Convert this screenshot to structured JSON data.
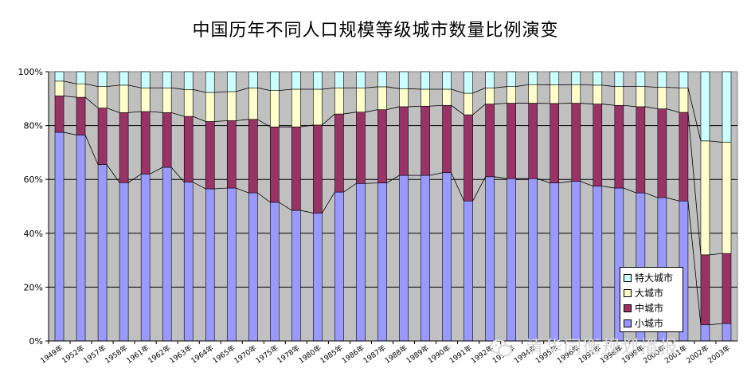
{
  "chart_data": {
    "type": "bar",
    "stacked": true,
    "percent": true,
    "title": "中国历年不同人口规模等级城市数量比例演变",
    "categories": [
      "1949年",
      "1952年",
      "1957年",
      "1958年",
      "1961年",
      "1962年",
      "1963年",
      "1964年",
      "1965年",
      "1970年",
      "1975年",
      "1978年",
      "1980年",
      "1985年",
      "1986年",
      "1987年",
      "1988年",
      "1989年",
      "1990年",
      "1991年",
      "1992年",
      "1993年",
      "1994年",
      "1995年",
      "1996年",
      "1997年",
      "1998年",
      "1999年",
      "2000年",
      "2001年",
      "2002年",
      "2003年"
    ],
    "ylim": [
      0,
      100
    ],
    "yticks": [
      "0%",
      "20%",
      "40%",
      "60%",
      "80%",
      "100%"
    ],
    "grid": true,
    "legend_position": "bottom-right",
    "series": [
      {
        "name": "小城市",
        "color": "#9999ff",
        "values": [
          77.5,
          76.5,
          65.5,
          58.8,
          62.0,
          64.5,
          59.0,
          56.5,
          56.8,
          55.0,
          51.5,
          48.5,
          47.5,
          55.3,
          58.5,
          58.7,
          61.5,
          61.5,
          62.5,
          52.0,
          61.0,
          60.3,
          60.3,
          58.7,
          59.3,
          57.5,
          56.8,
          55.0,
          53.2,
          52.0,
          6.0,
          6.5
        ]
      },
      {
        "name": "中城市",
        "color": "#993366",
        "values": [
          13.5,
          14.0,
          21.0,
          26.0,
          23.2,
          20.3,
          24.4,
          25.0,
          25.0,
          27.3,
          28.0,
          31.0,
          32.7,
          29.0,
          26.5,
          27.2,
          25.5,
          25.7,
          25.0,
          32.0,
          27.0,
          28.0,
          28.0,
          29.5,
          29.0,
          30.5,
          30.7,
          32.0,
          33.0,
          32.9,
          26.0,
          26.0
        ]
      },
      {
        "name": "大城市",
        "color": "#ffffcc",
        "values": [
          5.5,
          5.0,
          8.0,
          10.2,
          8.8,
          9.2,
          10.0,
          10.8,
          10.8,
          11.7,
          13.5,
          14.0,
          13.3,
          9.7,
          9.0,
          8.5,
          6.7,
          6.3,
          6.0,
          8.0,
          6.0,
          6.2,
          6.9,
          6.9,
          6.9,
          7.0,
          7.0,
          7.5,
          8.0,
          9.1,
          42.3,
          41.3
        ]
      },
      {
        "name": "特大城市",
        "color": "#ccffff",
        "values": [
          3.5,
          4.5,
          5.5,
          5.0,
          6.0,
          6.0,
          6.6,
          7.7,
          7.4,
          6.0,
          7.0,
          6.5,
          6.5,
          6.0,
          6.0,
          5.6,
          6.3,
          6.5,
          6.5,
          8.0,
          6.0,
          5.5,
          4.8,
          4.9,
          4.8,
          5.0,
          5.5,
          5.5,
          5.8,
          6.0,
          25.7,
          26.2
        ]
      }
    ]
  },
  "watermark": {
    "text": "清华同衡规划播报",
    "icon": "wechat-icon"
  }
}
